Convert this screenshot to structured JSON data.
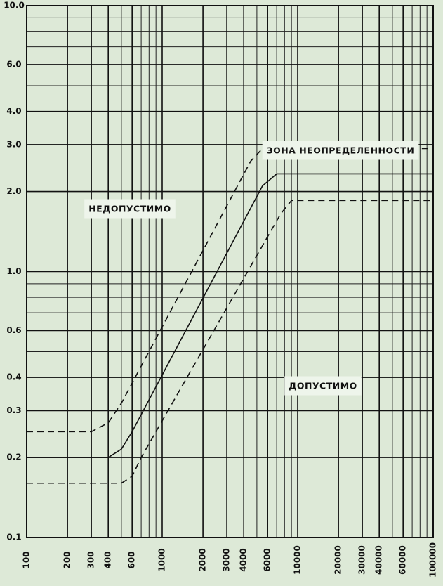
{
  "chart_data": {
    "type": "line",
    "log_x": true,
    "log_y": true,
    "grid": true,
    "minor_grid": true,
    "xlim": [
      100,
      100000
    ],
    "ylim": [
      0.1,
      10
    ],
    "xticks": [
      100,
      200,
      300,
      400,
      600,
      1000,
      2000,
      3000,
      4000,
      6000,
      10000,
      20000,
      30000,
      40000,
      60000,
      100000
    ],
    "yticks": [
      0.1,
      0.2,
      0.3,
      0.4,
      0.6,
      {
        "value": 1,
        "label": "1.0"
      },
      {
        "value": 2,
        "label": "2.0"
      },
      {
        "value": 3,
        "label": "3.0"
      },
      {
        "value": 4,
        "label": "4.0"
      },
      {
        "value": 6,
        "label": "6.0"
      },
      {
        "value": 10,
        "label": "10.0"
      }
    ],
    "series": [
      {
        "color": "#111111",
        "dashed": true,
        "x": [
          100,
          300,
          400,
          500,
          4500,
          5500,
          100000
        ],
        "values": [
          0.25,
          0.25,
          0.27,
          0.32,
          2.6,
          2.9,
          2.9
        ]
      },
      {
        "color": "#111111",
        "dashed": false,
        "x": [
          100,
          400,
          500,
          600,
          5500,
          7000,
          100000
        ],
        "values": [
          0.2,
          0.2,
          0.215,
          0.25,
          2.1,
          2.33,
          2.33
        ]
      },
      {
        "color": "#111111",
        "dashed": true,
        "x": [
          100,
          500,
          600,
          700,
          7500,
          9000,
          100000
        ],
        "values": [
          0.16,
          0.16,
          0.17,
          0.2,
          1.65,
          1.85,
          1.85
        ]
      }
    ],
    "annotations": [
      "НЕДОПУСТИМО",
      "ЗОНА НЕОПРЕДЕЛЕННОСТИ",
      "ДОПУСТИМО"
    ]
  }
}
